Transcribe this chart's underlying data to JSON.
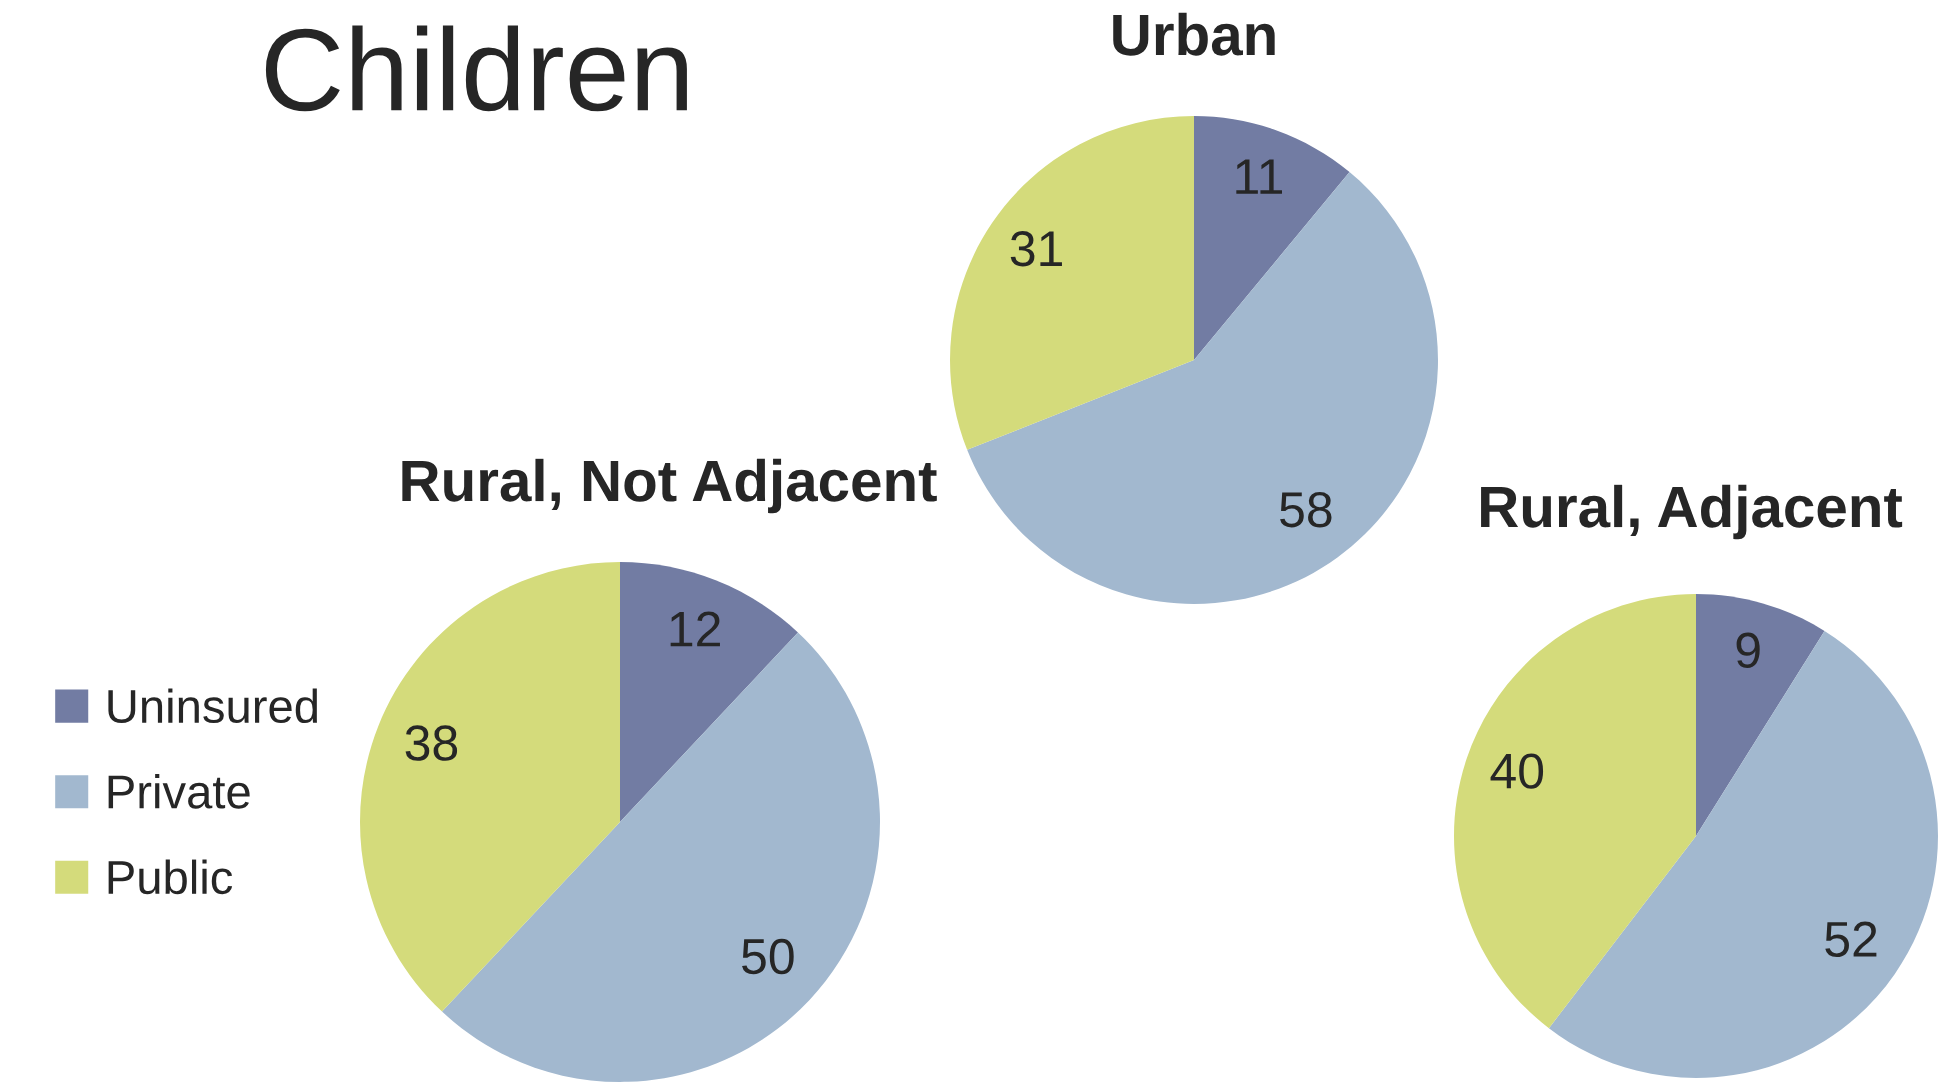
{
  "chart_data": [
    {
      "type": "other",
      "title": "Children"
    },
    {
      "type": "pie",
      "title": "Urban",
      "categories": [
        "Uninsured",
        "Private",
        "Public"
      ],
      "values": [
        11,
        58,
        31
      ],
      "colors": [
        "#727ca3",
        "#a2b8cf",
        "#d4db7b"
      ],
      "data_labels": true,
      "legend": "left"
    },
    {
      "type": "pie",
      "title": "Rural, Not Adjacent",
      "categories": [
        null,
        null,
        null
      ],
      "values": [
        12,
        50,
        38
      ],
      "colors": [
        "#727ca3",
        "#a2b8cf",
        "#d4db7b"
      ],
      "data_labels": true
    },
    {
      "type": "pie",
      "title": "Rural, Adjacent",
      "categories": [
        null,
        null,
        null
      ],
      "values": [
        9,
        52,
        40
      ],
      "colors": [
        "#727ca3",
        "#a2b8cf",
        "#d4db7b"
      ],
      "data_labels": true
    }
  ]
}
